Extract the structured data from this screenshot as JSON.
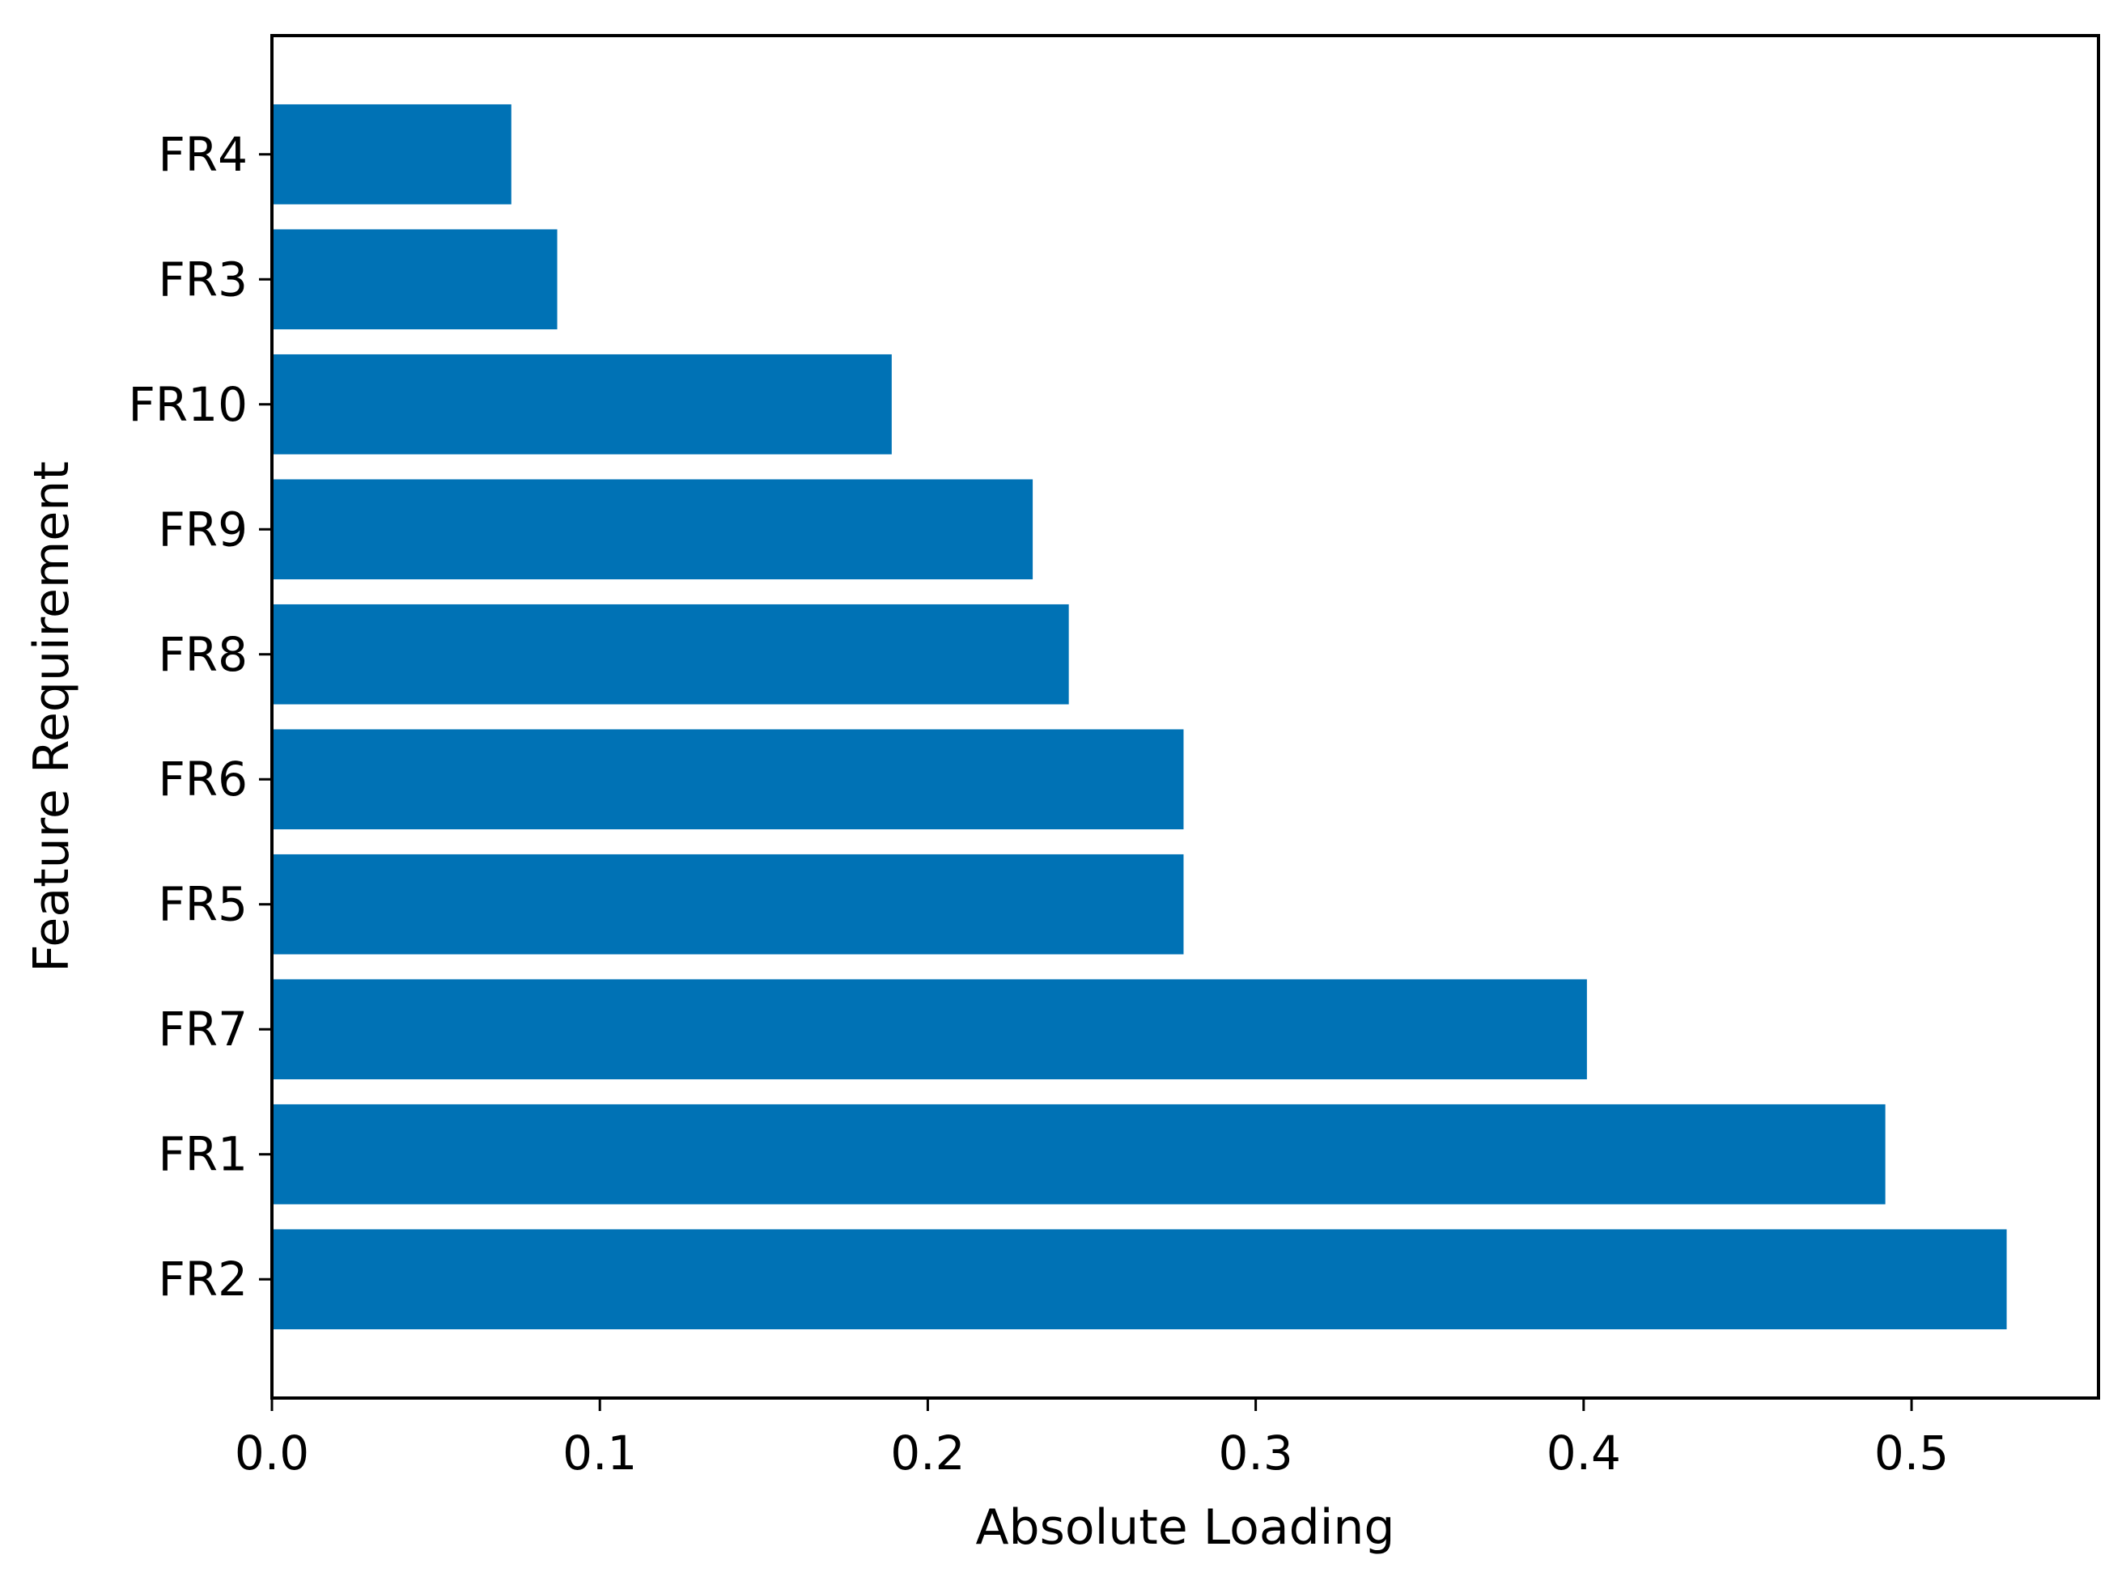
{
  "chart_data": {
    "type": "bar",
    "orientation": "horizontal",
    "title": "",
    "xlabel": "Absolute Loading",
    "ylabel": "Feature Requirement",
    "categories": [
      "FR2",
      "FR1",
      "FR7",
      "FR5",
      "FR6",
      "FR8",
      "FR9",
      "FR10",
      "FR3",
      "FR4"
    ],
    "values": [
      0.529,
      0.492,
      0.401,
      0.278,
      0.278,
      0.243,
      0.232,
      0.189,
      0.087,
      0.073
    ],
    "xlim": [
      0,
      0.557
    ],
    "xticks": [
      0.0,
      0.1,
      0.2,
      0.3,
      0.4,
      0.5
    ],
    "xtick_labels": [
      "0.0",
      "0.1",
      "0.2",
      "0.3",
      "0.4",
      "0.5"
    ],
    "grid": false,
    "legend": "none",
    "bar_color": "#0072B5"
  }
}
